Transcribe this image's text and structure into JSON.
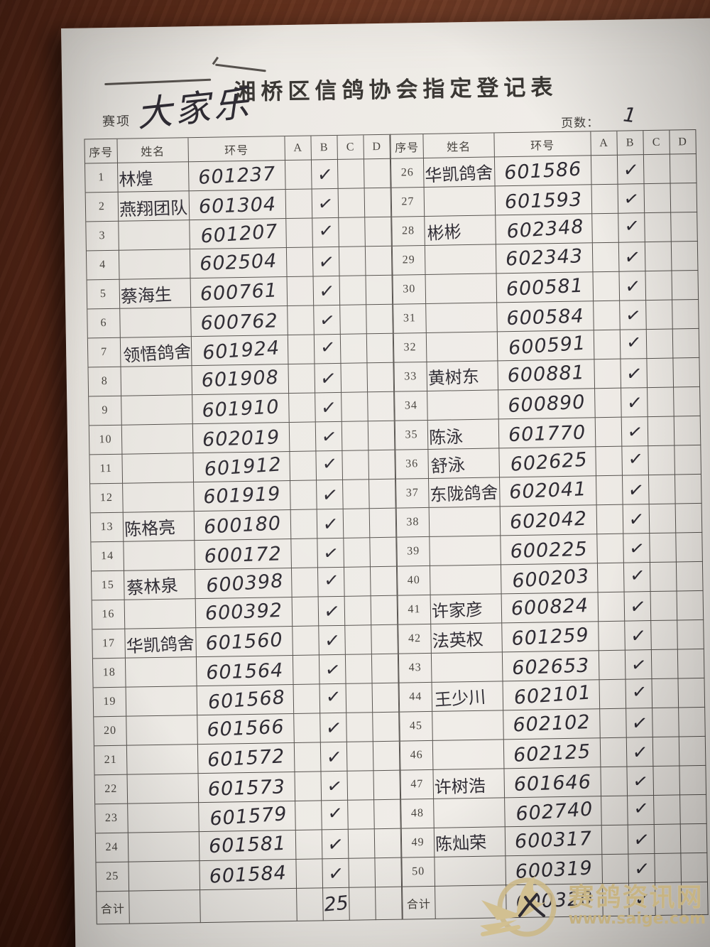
{
  "photo": {
    "surface": "wood-table",
    "wood_color": "#63301c",
    "paper_color": "#edeae5",
    "ink_color": "#2e2b33"
  },
  "watermark": {
    "site_name": "赛鸽资讯网",
    "site_url": "www.saige.com",
    "color": "#c7b484",
    "logo": "pigeon-logo"
  },
  "form": {
    "title": "湘桥区信鸽协会指定登记表",
    "event_label": "赛项",
    "event_value": "大家乐",
    "page_label": "页数：",
    "page_value": "1",
    "col_headers": [
      "序号",
      "姓名",
      "环号",
      "A",
      "B",
      "C",
      "D"
    ],
    "total_label": "合计",
    "check_glyph": "✓",
    "left_rows": [
      [
        "1",
        "林煌",
        "601237",
        "",
        "✓",
        "",
        ""
      ],
      [
        "2",
        "燕翔团队",
        "601304",
        "",
        "✓",
        "",
        ""
      ],
      [
        "3",
        "",
        "601207",
        "",
        "✓",
        "",
        ""
      ],
      [
        "4",
        "",
        "602504",
        "",
        "✓",
        "",
        ""
      ],
      [
        "5",
        "蔡海生",
        "600761",
        "",
        "✓",
        "",
        ""
      ],
      [
        "6",
        "",
        "600762",
        "",
        "✓",
        "",
        ""
      ],
      [
        "7",
        "领悟鸽舍",
        "601924",
        "",
        "✓",
        "",
        ""
      ],
      [
        "8",
        "",
        "601908",
        "",
        "✓",
        "",
        ""
      ],
      [
        "9",
        "",
        "601910",
        "",
        "✓",
        "",
        ""
      ],
      [
        "10",
        "",
        "602019",
        "",
        "✓",
        "",
        ""
      ],
      [
        "11",
        "",
        "601912",
        "",
        "✓",
        "",
        ""
      ],
      [
        "12",
        "",
        "601919",
        "",
        "✓",
        "",
        ""
      ],
      [
        "13",
        "陈格亮",
        "600180",
        "",
        "✓",
        "",
        ""
      ],
      [
        "14",
        "",
        "600172",
        "",
        "✓",
        "",
        ""
      ],
      [
        "15",
        "蔡林泉",
        "600398",
        "",
        "✓",
        "",
        ""
      ],
      [
        "16",
        "",
        "600392",
        "",
        "✓",
        "",
        ""
      ],
      [
        "17",
        "华凯鸽舍",
        "601560",
        "",
        "✓",
        "",
        ""
      ],
      [
        "18",
        "",
        "601564",
        "",
        "✓",
        "",
        ""
      ],
      [
        "19",
        "",
        "601568",
        "",
        "✓",
        "",
        ""
      ],
      [
        "20",
        "",
        "601566",
        "",
        "✓",
        "",
        ""
      ],
      [
        "21",
        "",
        "601572",
        "",
        "✓",
        "",
        ""
      ],
      [
        "22",
        "",
        "601573",
        "",
        "✓",
        "",
        ""
      ],
      [
        "23",
        "",
        "601579",
        "",
        "✓",
        "",
        ""
      ],
      [
        "24",
        "",
        "601581",
        "",
        "✓",
        "",
        ""
      ],
      [
        "25",
        "",
        "601584",
        "",
        "✓",
        "",
        ""
      ]
    ],
    "left_total": [
      "合计",
      "",
      "",
      "",
      "25",
      "",
      ""
    ],
    "right_rows": [
      [
        "26",
        "华凯鸽舍",
        "601586",
        "",
        "✓",
        "",
        ""
      ],
      [
        "27",
        "",
        "601593",
        "",
        "✓",
        "",
        ""
      ],
      [
        "28",
        "彬彬",
        "602348",
        "",
        "✓",
        "",
        ""
      ],
      [
        "29",
        "",
        "602343",
        "",
        "✓",
        "",
        ""
      ],
      [
        "30",
        "",
        "600581",
        "",
        "✓",
        "",
        ""
      ],
      [
        "31",
        "",
        "600584",
        "",
        "✓",
        "",
        ""
      ],
      [
        "32",
        "",
        "600591",
        "",
        "✓",
        "",
        ""
      ],
      [
        "33",
        "黄树东",
        "600881",
        "",
        "✓",
        "",
        ""
      ],
      [
        "34",
        "",
        "600890",
        "",
        "✓",
        "",
        ""
      ],
      [
        "35",
        "陈泳",
        "601770",
        "",
        "✓",
        "",
        ""
      ],
      [
        "36",
        "舒泳",
        "602625",
        "",
        "✓",
        "",
        ""
      ],
      [
        "37",
        "东陇鸽舍",
        "602041",
        "",
        "✓",
        "",
        ""
      ],
      [
        "38",
        "",
        "602042",
        "",
        "✓",
        "",
        ""
      ],
      [
        "39",
        "",
        "600225",
        "",
        "✓",
        "",
        ""
      ],
      [
        "40",
        "",
        "600203",
        "",
        "✓",
        "",
        ""
      ],
      [
        "41",
        "许家彦",
        "600824",
        "",
        "✓",
        "",
        ""
      ],
      [
        "42",
        "法英权",
        "601259",
        "",
        "✓",
        "",
        ""
      ],
      [
        "43",
        "",
        "602653",
        "",
        "✓",
        "",
        ""
      ],
      [
        "44",
        "王少川",
        "602101",
        "",
        "✓",
        "",
        ""
      ],
      [
        "45",
        "",
        "602102",
        "",
        "✓",
        "",
        ""
      ],
      [
        "46",
        "",
        "602125",
        "",
        "✓",
        "",
        ""
      ],
      [
        "47",
        "许树浩",
        "601646",
        "",
        "✓",
        "",
        ""
      ],
      [
        "48",
        "",
        "602740",
        "",
        "✓",
        "",
        ""
      ],
      [
        "49",
        "陈灿荣",
        "600317",
        "",
        "✓",
        "",
        ""
      ],
      [
        "50",
        "",
        "600319",
        "",
        "✓",
        "",
        ""
      ]
    ],
    "right_total": [
      "合计",
      "",
      "600320",
      "",
      "✓",
      "",
      ""
    ]
  }
}
